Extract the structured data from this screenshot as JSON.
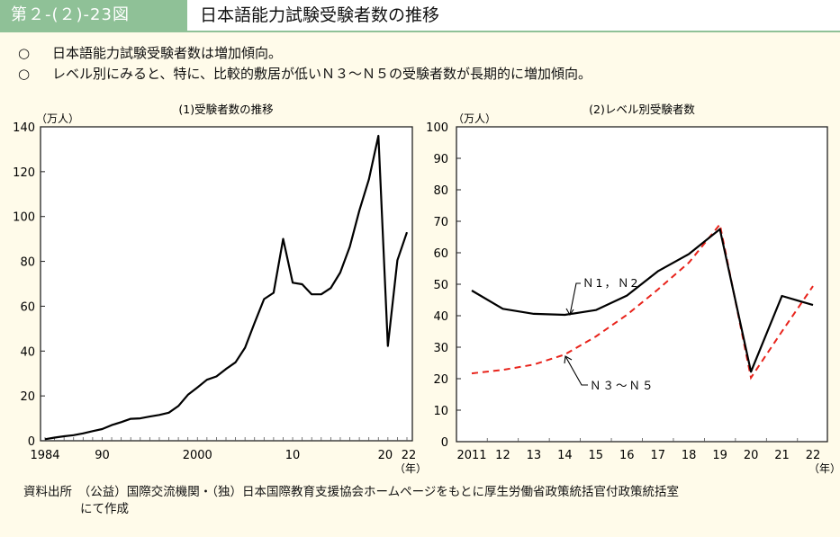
{
  "header": {
    "figure_number": "第２-(２)-23図",
    "title": "日本語能力試験受験者数の推移"
  },
  "bullets": [
    {
      "mark": "○",
      "text": "日本語能力試験受験者数は増加傾向。"
    },
    {
      "mark": "○",
      "text": "レベル別にみると、特に、比較的敷居が低いＮ３～Ｎ５の受験者数が長期的に増加傾向。"
    }
  ],
  "source": {
    "line1": "資料出所　（公益）国際交流機関・（独）日本国際教育支援協会ホームページをもとに厚生労働省政策統括官付政策統括室",
    "line2": "にて作成"
  },
  "colors": {
    "badge": "#8fc197",
    "n1n2": "#000000",
    "n3n5": "#e8231b"
  },
  "chart_data": [
    {
      "type": "line",
      "title": "(1)受験者数の推移",
      "ylabel": "（万人）",
      "xlabel": "（年）",
      "ylim": [
        0,
        140
      ],
      "yticks": [
        0,
        20,
        40,
        60,
        80,
        100,
        120,
        140
      ],
      "xlim": [
        1984,
        2022
      ],
      "xtick_labels": [
        {
          "x": 1984,
          "label": "1984"
        },
        {
          "x": 1990,
          "label": "90"
        },
        {
          "x": 2000,
          "label": "2000"
        },
        {
          "x": 2010,
          "label": "10"
        },
        {
          "x": 2020,
          "label": "20"
        },
        {
          "x": 2022,
          "label": "22"
        }
      ],
      "x": [
        1984,
        1985,
        1986,
        1987,
        1988,
        1989,
        1990,
        1991,
        1992,
        1993,
        1994,
        1995,
        1996,
        1997,
        1998,
        1999,
        2000,
        2001,
        2002,
        2003,
        2004,
        2005,
        2006,
        2007,
        2008,
        2009,
        2010,
        2011,
        2012,
        2013,
        2014,
        2015,
        2016,
        2017,
        2018,
        2019,
        2020,
        2021,
        2022
      ],
      "series": [
        {
          "name": "受験者数",
          "values": [
            0.7,
            1.4,
            2.0,
            2.5,
            3.3,
            4.3,
            5.2,
            7.0,
            8.3,
            9.8,
            10.0,
            10.8,
            11.5,
            12.5,
            15.5,
            20.5,
            23.8,
            27.2,
            28.7,
            32.0,
            35.0,
            41.5,
            52.5,
            63.2,
            66.0,
            90.0,
            70.5,
            69.8,
            65.3,
            65.3,
            68.1,
            75.0,
            86.5,
            102.6,
            116.5,
            136.0,
            42.3,
            80.5,
            93.0
          ]
        }
      ]
    },
    {
      "type": "line",
      "title": "(2)レベル別受験者数",
      "ylabel": "（万人）",
      "xlabel": "（年）",
      "ylim": [
        0,
        100
      ],
      "yticks": [
        0,
        10,
        20,
        30,
        40,
        50,
        60,
        70,
        80,
        90,
        100
      ],
      "x": [
        2011,
        2012,
        2013,
        2014,
        2015,
        2016,
        2017,
        2018,
        2019,
        2020,
        2021,
        2022
      ],
      "xtick_labels": [
        "2011",
        "12",
        "13",
        "14",
        "15",
        "16",
        "17",
        "18",
        "19",
        "20",
        "21",
        "22"
      ],
      "series": [
        {
          "name": "N1,N2",
          "label": "Ｎ1，Ｎ2",
          "style": "solid",
          "values": [
            48.0,
            42.2,
            40.6,
            40.3,
            41.8,
            46.4,
            54.1,
            59.6,
            67.5,
            22.2,
            46.3,
            43.4
          ]
        },
        {
          "name": "N3~N5",
          "label": "Ｎ３～Ｎ５",
          "style": "dashed",
          "values": [
            21.7,
            22.8,
            24.5,
            27.7,
            33.4,
            40.3,
            48.3,
            56.9,
            69.0,
            20.3,
            35.0,
            49.4
          ]
        }
      ]
    }
  ]
}
